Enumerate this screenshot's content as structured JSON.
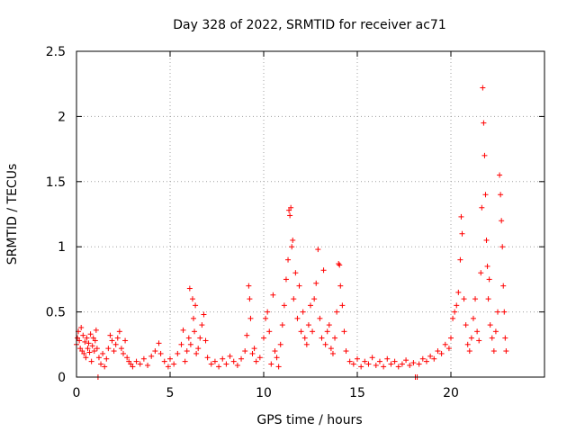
{
  "chart_data": {
    "type": "scatter",
    "title": "Day 328 of 2022, SRMTID for receiver ac71",
    "xlabel": "GPS time / hours",
    "ylabel": "SRMTID / TECUs",
    "xlim": [
      0,
      25
    ],
    "ylim": [
      0,
      2.5
    ],
    "xticks": [
      0,
      5,
      10,
      15,
      20
    ],
    "yticks": [
      0,
      0.5,
      1,
      1.5,
      2,
      2.5
    ],
    "xtick_labels": [
      "0",
      "5",
      "10",
      "15",
      "20"
    ],
    "ytick_labels": [
      "0",
      "0.5",
      "1",
      "1.5",
      "2",
      "2.5"
    ],
    "grid": true,
    "marker": "+",
    "color": "#ff0000",
    "series": [
      {
        "name": "SRMTID",
        "points": [
          [
            0.0,
            0.25
          ],
          [
            0.05,
            0.3
          ],
          [
            0.1,
            0.35
          ],
          [
            0.15,
            0.28
          ],
          [
            0.2,
            0.22
          ],
          [
            0.25,
            0.38
          ],
          [
            0.3,
            0.2
          ],
          [
            0.35,
            0.32
          ],
          [
            0.4,
            0.18
          ],
          [
            0.45,
            0.27
          ],
          [
            0.5,
            0.15
          ],
          [
            0.55,
            0.3
          ],
          [
            0.6,
            0.22
          ],
          [
            0.65,
            0.26
          ],
          [
            0.7,
            0.19
          ],
          [
            0.75,
            0.33
          ],
          [
            0.8,
            0.12
          ],
          [
            0.85,
            0.24
          ],
          [
            0.9,
            0.3
          ],
          [
            0.95,
            0.2
          ],
          [
            1.0,
            0.28
          ],
          [
            1.05,
            0.36
          ],
          [
            1.1,
            0.22
          ],
          [
            1.15,
            0.0
          ],
          [
            1.2,
            0.15
          ],
          [
            1.3,
            0.1
          ],
          [
            1.4,
            0.18
          ],
          [
            1.5,
            0.08
          ],
          [
            1.6,
            0.14
          ],
          [
            1.7,
            0.22
          ],
          [
            1.8,
            0.32
          ],
          [
            1.9,
            0.28
          ],
          [
            2.0,
            0.2
          ],
          [
            2.1,
            0.25
          ],
          [
            2.2,
            0.3
          ],
          [
            2.3,
            0.35
          ],
          [
            2.4,
            0.22
          ],
          [
            2.5,
            0.18
          ],
          [
            2.6,
            0.28
          ],
          [
            2.7,
            0.15
          ],
          [
            2.8,
            0.12
          ],
          [
            2.9,
            0.1
          ],
          [
            3.0,
            0.08
          ],
          [
            3.2,
            0.12
          ],
          [
            3.4,
            0.1
          ],
          [
            3.6,
            0.14
          ],
          [
            3.8,
            0.09
          ],
          [
            4.0,
            0.16
          ],
          [
            4.2,
            0.2
          ],
          [
            4.4,
            0.26
          ],
          [
            4.5,
            0.18
          ],
          [
            4.7,
            0.12
          ],
          [
            4.9,
            0.08
          ],
          [
            5.0,
            0.14
          ],
          [
            5.2,
            0.1
          ],
          [
            5.4,
            0.18
          ],
          [
            5.6,
            0.25
          ],
          [
            5.7,
            0.36
          ],
          [
            5.8,
            0.12
          ],
          [
            5.9,
            0.2
          ],
          [
            6.0,
            0.3
          ],
          [
            6.05,
            0.68
          ],
          [
            6.1,
            0.25
          ],
          [
            6.2,
            0.6
          ],
          [
            6.25,
            0.45
          ],
          [
            6.3,
            0.35
          ],
          [
            6.35,
            0.55
          ],
          [
            6.4,
            0.18
          ],
          [
            6.5,
            0.22
          ],
          [
            6.6,
            0.3
          ],
          [
            6.7,
            0.4
          ],
          [
            6.8,
            0.48
          ],
          [
            6.9,
            0.28
          ],
          [
            7.0,
            0.15
          ],
          [
            7.2,
            0.1
          ],
          [
            7.4,
            0.12
          ],
          [
            7.6,
            0.08
          ],
          [
            7.8,
            0.14
          ],
          [
            8.0,
            0.1
          ],
          [
            8.2,
            0.16
          ],
          [
            8.4,
            0.12
          ],
          [
            8.6,
            0.09
          ],
          [
            8.8,
            0.14
          ],
          [
            9.0,
            0.2
          ],
          [
            9.1,
            0.32
          ],
          [
            9.2,
            0.7
          ],
          [
            9.25,
            0.6
          ],
          [
            9.3,
            0.45
          ],
          [
            9.4,
            0.18
          ],
          [
            9.5,
            0.22
          ],
          [
            9.6,
            0.12
          ],
          [
            9.8,
            0.15
          ],
          [
            10.0,
            0.3
          ],
          [
            10.1,
            0.45
          ],
          [
            10.2,
            0.5
          ],
          [
            10.3,
            0.35
          ],
          [
            10.4,
            0.1
          ],
          [
            10.5,
            0.63
          ],
          [
            10.6,
            0.2
          ],
          [
            10.7,
            0.15
          ],
          [
            10.8,
            0.08
          ],
          [
            10.9,
            0.25
          ],
          [
            11.0,
            0.4
          ],
          [
            11.1,
            0.55
          ],
          [
            11.2,
            0.75
          ],
          [
            11.3,
            0.9
          ],
          [
            11.35,
            1.28
          ],
          [
            11.4,
            1.24
          ],
          [
            11.45,
            1.3
          ],
          [
            11.5,
            1.0
          ],
          [
            11.55,
            1.05
          ],
          [
            11.6,
            0.6
          ],
          [
            11.7,
            0.8
          ],
          [
            11.8,
            0.45
          ],
          [
            11.9,
            0.7
          ],
          [
            12.0,
            0.35
          ],
          [
            12.1,
            0.5
          ],
          [
            12.2,
            0.3
          ],
          [
            12.3,
            0.25
          ],
          [
            12.4,
            0.4
          ],
          [
            12.5,
            0.55
          ],
          [
            12.6,
            0.35
          ],
          [
            12.7,
            0.6
          ],
          [
            12.8,
            0.72
          ],
          [
            12.9,
            0.98
          ],
          [
            13.0,
            0.45
          ],
          [
            13.1,
            0.3
          ],
          [
            13.2,
            0.82
          ],
          [
            13.3,
            0.25
          ],
          [
            13.4,
            0.35
          ],
          [
            13.5,
            0.4
          ],
          [
            13.6,
            0.22
          ],
          [
            13.7,
            0.18
          ],
          [
            13.8,
            0.3
          ],
          [
            13.9,
            0.5
          ],
          [
            14.0,
            0.87
          ],
          [
            14.05,
            0.86
          ],
          [
            14.1,
            0.7
          ],
          [
            14.2,
            0.55
          ],
          [
            14.3,
            0.35
          ],
          [
            14.4,
            0.2
          ],
          [
            14.6,
            0.12
          ],
          [
            14.8,
            0.1
          ],
          [
            15.0,
            0.14
          ],
          [
            15.2,
            0.08
          ],
          [
            15.4,
            0.12
          ],
          [
            15.6,
            0.1
          ],
          [
            15.8,
            0.15
          ],
          [
            16.0,
            0.09
          ],
          [
            16.2,
            0.12
          ],
          [
            16.4,
            0.08
          ],
          [
            16.6,
            0.14
          ],
          [
            16.8,
            0.1
          ],
          [
            17.0,
            0.12
          ],
          [
            17.2,
            0.08
          ],
          [
            17.4,
            0.1
          ],
          [
            17.6,
            0.13
          ],
          [
            17.8,
            0.09
          ],
          [
            18.0,
            0.11
          ],
          [
            18.1,
            0.0
          ],
          [
            18.2,
            0.0
          ],
          [
            18.3,
            0.1
          ],
          [
            18.5,
            0.14
          ],
          [
            18.7,
            0.12
          ],
          [
            18.9,
            0.16
          ],
          [
            19.1,
            0.14
          ],
          [
            19.3,
            0.2
          ],
          [
            19.5,
            0.18
          ],
          [
            19.7,
            0.25
          ],
          [
            19.9,
            0.22
          ],
          [
            20.0,
            0.3
          ],
          [
            20.1,
            0.45
          ],
          [
            20.2,
            0.5
          ],
          [
            20.3,
            0.55
          ],
          [
            20.4,
            0.65
          ],
          [
            20.5,
            0.9
          ],
          [
            20.55,
            1.23
          ],
          [
            20.6,
            1.1
          ],
          [
            20.7,
            0.6
          ],
          [
            20.8,
            0.4
          ],
          [
            20.9,
            0.25
          ],
          [
            21.0,
            0.2
          ],
          [
            21.1,
            0.3
          ],
          [
            21.2,
            0.45
          ],
          [
            21.3,
            0.6
          ],
          [
            21.4,
            0.35
          ],
          [
            21.5,
            0.28
          ],
          [
            21.6,
            0.8
          ],
          [
            21.65,
            1.3
          ],
          [
            21.7,
            2.22
          ],
          [
            21.75,
            1.95
          ],
          [
            21.8,
            1.7
          ],
          [
            21.85,
            1.4
          ],
          [
            21.9,
            1.05
          ],
          [
            21.95,
            0.85
          ],
          [
            22.0,
            0.6
          ],
          [
            22.05,
            0.75
          ],
          [
            22.1,
            0.4
          ],
          [
            22.2,
            0.3
          ],
          [
            22.3,
            0.2
          ],
          [
            22.4,
            0.35
          ],
          [
            22.5,
            0.5
          ],
          [
            22.6,
            1.55
          ],
          [
            22.65,
            1.4
          ],
          [
            22.7,
            1.2
          ],
          [
            22.75,
            1.0
          ],
          [
            22.8,
            0.7
          ],
          [
            22.85,
            0.5
          ],
          [
            22.9,
            0.3
          ],
          [
            22.95,
            0.2
          ]
        ]
      }
    ]
  }
}
